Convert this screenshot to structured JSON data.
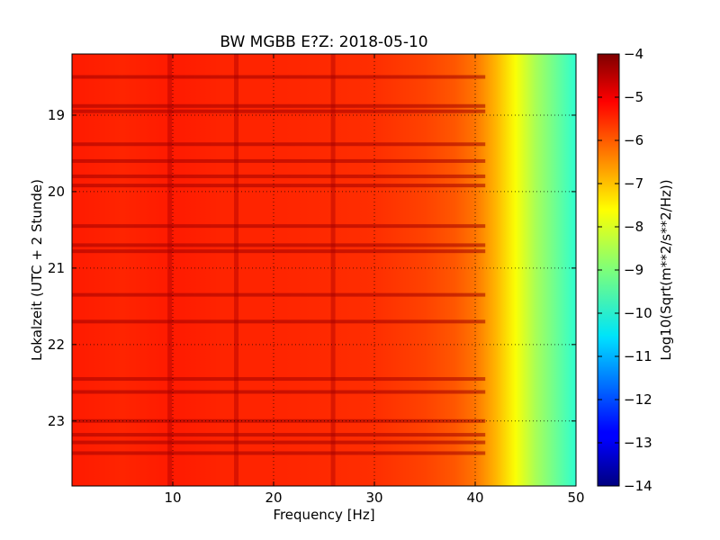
{
  "chart_data": {
    "type": "heatmap",
    "title": "BW MGBB E?Z: 2018-05-10",
    "xlabel": "Frequency [Hz]",
    "ylabel": "Lokalzeit (UTC + 2 Stunde)",
    "xlim": [
      0,
      50
    ],
    "ylim": [
      18.2,
      23.85
    ],
    "y_inverted": true,
    "x_ticks": [
      10,
      20,
      30,
      40,
      50
    ],
    "x_tick_labels": [
      "10",
      "20",
      "30",
      "40",
      "50"
    ],
    "y_ticks": [
      19,
      20,
      21,
      22,
      23
    ],
    "y_tick_labels": [
      "19",
      "20",
      "21",
      "22",
      "23"
    ],
    "grid": true,
    "colormap": "jet",
    "colorbar": {
      "label": "Log10(Sqrt(m**2/s**2/Hz))",
      "range": [
        -14,
        -4
      ],
      "ticks": [
        -4,
        -5,
        -6,
        -7,
        -8,
        -9,
        -10,
        -11,
        -12,
        -13,
        -14
      ],
      "tick_labels": [
        "−4",
        "−5",
        "−6",
        "−7",
        "−8",
        "−9",
        "−10",
        "−11",
        "−12",
        "−13",
        "−14"
      ]
    },
    "spectrum_profile": {
      "frequency_hz": [
        0,
        5,
        10,
        15,
        20,
        25,
        30,
        35,
        38,
        40,
        42,
        44,
        46,
        48,
        50
      ],
      "log10_amplitude": [
        -5.5,
        -5.6,
        -5.5,
        -5.6,
        -5.6,
        -5.65,
        -5.7,
        -5.9,
        -6.1,
        -6.4,
        -7.0,
        -7.8,
        -8.6,
        -9.2,
        -9.8
      ]
    },
    "vertical_lines_hz": [
      9.7,
      16.3,
      25.9
    ],
    "horizontal_bands_time": [
      18.5,
      18.88,
      18.95,
      19.38,
      19.6,
      19.8,
      19.92,
      20.45,
      20.7,
      20.78,
      21.35,
      21.7,
      22.45,
      22.62,
      23.0,
      23.18,
      23.28,
      23.42
    ]
  }
}
